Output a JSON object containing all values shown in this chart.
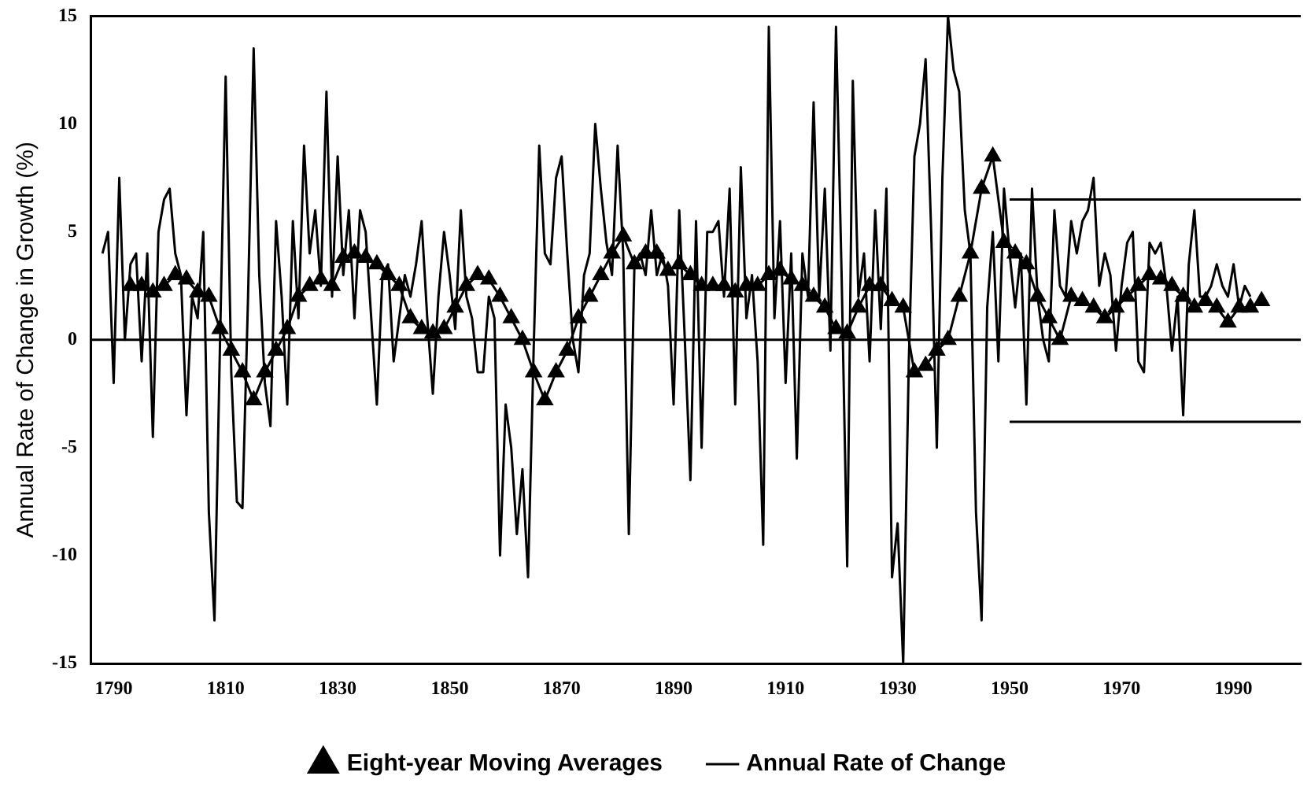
{
  "chart_data": {
    "type": "line",
    "ylabel": "Annual Rate of Change in Growth (%)",
    "xlim": [
      1786,
      2002
    ],
    "xticks": [
      1790,
      1810,
      1830,
      1850,
      1870,
      1890,
      1910,
      1930,
      1950,
      1970,
      1990
    ],
    "ylim": [
      -15,
      15
    ],
    "yticks": [
      -15,
      -10,
      -5,
      0,
      5,
      10,
      15
    ],
    "grid": false,
    "legend": "bottom",
    "line_style": "solid",
    "ref_lines": [
      {
        "axis": "y",
        "value": 0,
        "color": "#000000"
      }
    ],
    "series": [
      {
        "name": "Eight-year Moving Averages",
        "color": "#000000",
        "marker": "triangle",
        "x": [
          1793,
          1795,
          1797,
          1799,
          1801,
          1803,
          1805,
          1807,
          1809,
          1811,
          1813,
          1815,
          1817,
          1819,
          1821,
          1823,
          1825,
          1827,
          1829,
          1831,
          1833,
          1835,
          1837,
          1839,
          1841,
          1843,
          1845,
          1847,
          1849,
          1851,
          1853,
          1855,
          1857,
          1859,
          1861,
          1863,
          1865,
          1867,
          1869,
          1871,
          1873,
          1875,
          1877,
          1879,
          1881,
          1883,
          1885,
          1887,
          1889,
          1891,
          1893,
          1895,
          1897,
          1899,
          1901,
          1903,
          1905,
          1907,
          1909,
          1911,
          1913,
          1915,
          1917,
          1919,
          1921,
          1923,
          1925,
          1927,
          1929,
          1931,
          1933,
          1935,
          1937,
          1939,
          1941,
          1943,
          1945,
          1947,
          1949,
          1951,
          1953,
          1955,
          1957,
          1959,
          1961,
          1963,
          1965,
          1967,
          1969,
          1971,
          1973,
          1975,
          1977,
          1979,
          1981,
          1983,
          1985,
          1987,
          1989,
          1991,
          1993,
          1995
        ],
        "values": [
          2.5,
          2.5,
          2.2,
          2.5,
          3,
          2.8,
          2.2,
          2,
          0.5,
          -0.5,
          -1.5,
          -2.8,
          -1.5,
          -0.5,
          0.5,
          2,
          2.5,
          2.8,
          2.5,
          3.8,
          4,
          3.8,
          3.5,
          3,
          2.5,
          1,
          0.5,
          0.3,
          0.5,
          1.5,
          2.5,
          3,
          2.8,
          2,
          1,
          0,
          -1.5,
          -2.8,
          -1.5,
          -0.5,
          1,
          2,
          3,
          4,
          4.8,
          3.5,
          4,
          4,
          3.2,
          3.5,
          3,
          2.5,
          2.5,
          2.5,
          2.2,
          2.5,
          2.5,
          3,
          3.2,
          2.8,
          2.5,
          2,
          1.5,
          0.5,
          0.3,
          1.5,
          2.5,
          2.5,
          1.8,
          1.5,
          -1.5,
          -1.2,
          -0.5,
          0,
          2,
          4,
          7,
          8.5,
          4.5,
          4,
          3.5,
          2,
          1,
          0,
          2,
          1.8,
          1.5,
          1,
          1.5,
          2,
          2.5,
          3,
          2.8,
          2.5,
          2,
          1.5,
          1.8,
          1.5,
          0.8,
          1.5,
          1.5,
          1.8
        ]
      },
      {
        "name": "Annual Rate of Change",
        "color": "#000000",
        "marker": "none",
        "x": [
          1788,
          1789,
          1790,
          1791,
          1792,
          1793,
          1794,
          1795,
          1796,
          1797,
          1798,
          1799,
          1800,
          1801,
          1802,
          1803,
          1804,
          1805,
          1806,
          1807,
          1808,
          1809,
          1810,
          1811,
          1812,
          1813,
          1814,
          1815,
          1816,
          1817,
          1818,
          1819,
          1820,
          1821,
          1822,
          1823,
          1824,
          1825,
          1826,
          1827,
          1828,
          1829,
          1830,
          1831,
          1832,
          1833,
          1834,
          1835,
          1836,
          1837,
          1838,
          1839,
          1840,
          1841,
          1842,
          1843,
          1844,
          1845,
          1846,
          1847,
          1848,
          1849,
          1850,
          1851,
          1852,
          1853,
          1854,
          1855,
          1856,
          1857,
          1858,
          1859,
          1860,
          1861,
          1862,
          1863,
          1864,
          1865,
          1866,
          1867,
          1868,
          1869,
          1870,
          1871,
          1872,
          1873,
          1874,
          1875,
          1876,
          1877,
          1878,
          1879,
          1880,
          1881,
          1882,
          1883,
          1884,
          1885,
          1886,
          1887,
          1888,
          1889,
          1890,
          1891,
          1892,
          1893,
          1894,
          1895,
          1896,
          1897,
          1898,
          1899,
          1900,
          1901,
          1902,
          1903,
          1904,
          1905,
          1906,
          1907,
          1908,
          1909,
          1910,
          1911,
          1912,
          1913,
          1914,
          1915,
          1916,
          1917,
          1918,
          1919,
          1920,
          1921,
          1922,
          1923,
          1924,
          1925,
          1926,
          1927,
          1928,
          1929,
          1930,
          1931,
          1932,
          1933,
          1934,
          1935,
          1936,
          1937,
          1938,
          1939,
          1940,
          1941,
          1942,
          1943,
          1944,
          1945,
          1946,
          1947,
          1948,
          1949,
          1950,
          1951,
          1952,
          1953,
          1954,
          1955,
          1956,
          1957,
          1958,
          1959,
          1960,
          1961,
          1962,
          1963,
          1964,
          1965,
          1966,
          1967,
          1968,
          1969,
          1970,
          1971,
          1972,
          1973,
          1974,
          1975,
          1976,
          1977,
          1978,
          1979,
          1980,
          1981,
          1982,
          1983,
          1984,
          1985,
          1986,
          1987,
          1988,
          1989,
          1990,
          1991,
          1992,
          1993
        ],
        "values": [
          4,
          5,
          -2,
          7.5,
          0,
          3.5,
          4,
          -1,
          4,
          -4.5,
          5,
          6.5,
          7,
          4,
          3,
          -3.5,
          2,
          1,
          5,
          -8,
          -13,
          0,
          12.2,
          -1.5,
          -7.5,
          -7.8,
          2,
          13.5,
          3,
          -2,
          -4,
          5.5,
          2,
          -3,
          5.5,
          1,
          9,
          4,
          6,
          2.5,
          11.5,
          2,
          8.5,
          3,
          6,
          1,
          6,
          5,
          1,
          -3,
          3,
          3.5,
          -1,
          1,
          3,
          2,
          3.5,
          5.5,
          1,
          -2.5,
          2,
          5,
          3,
          0.5,
          6,
          2,
          1,
          -1.5,
          -1.5,
          2,
          1,
          -10,
          -3,
          -5,
          -9,
          -6,
          -11,
          -0.5,
          9,
          4,
          3.5,
          7.5,
          8.5,
          4,
          0,
          -1.5,
          3,
          4,
          10,
          7,
          4.5,
          3,
          9,
          4,
          -9,
          3.5,
          4,
          3,
          6,
          3,
          4,
          2.5,
          -3,
          6,
          0,
          -6.5,
          5.5,
          -5,
          5,
          5,
          5.5,
          2,
          7,
          -3,
          8,
          1,
          3,
          -1,
          -9.5,
          14.5,
          1,
          5.5,
          -2,
          4,
          -5.5,
          4,
          2,
          11,
          2,
          7,
          -0.5,
          14.5,
          3,
          -10.5,
          12,
          2,
          4,
          -1,
          6,
          0.5,
          7,
          -11,
          -8.5,
          -15,
          -1,
          8.5,
          10,
          13,
          5,
          -5,
          7.5,
          15,
          12.5,
          11.5,
          6,
          4,
          -8,
          -13,
          1.5,
          5,
          -1,
          7,
          4,
          1.5,
          4,
          -3,
          7,
          2,
          0,
          -1,
          6,
          2.5,
          2,
          5.5,
          4,
          5.5,
          6,
          7.5,
          2.5,
          4,
          3,
          -0.5,
          2.5,
          4.5,
          5,
          -1,
          -1.5,
          4.5,
          4,
          4.5,
          2.5,
          -0.5,
          2,
          -3.5,
          3.5,
          6,
          2,
          2,
          2.5,
          3.5,
          2.5,
          2,
          3.5,
          1.5,
          2.5,
          2
        ]
      },
      {
        "color": "#000000",
        "marker": "none",
        "x": [
          1950,
          2002
        ],
        "values": [
          6.5,
          6.5
        ]
      },
      {
        "color": "#000000",
        "marker": "none",
        "x": [
          1950,
          2002
        ],
        "values": [
          -3.8,
          -3.8
        ]
      }
    ]
  }
}
